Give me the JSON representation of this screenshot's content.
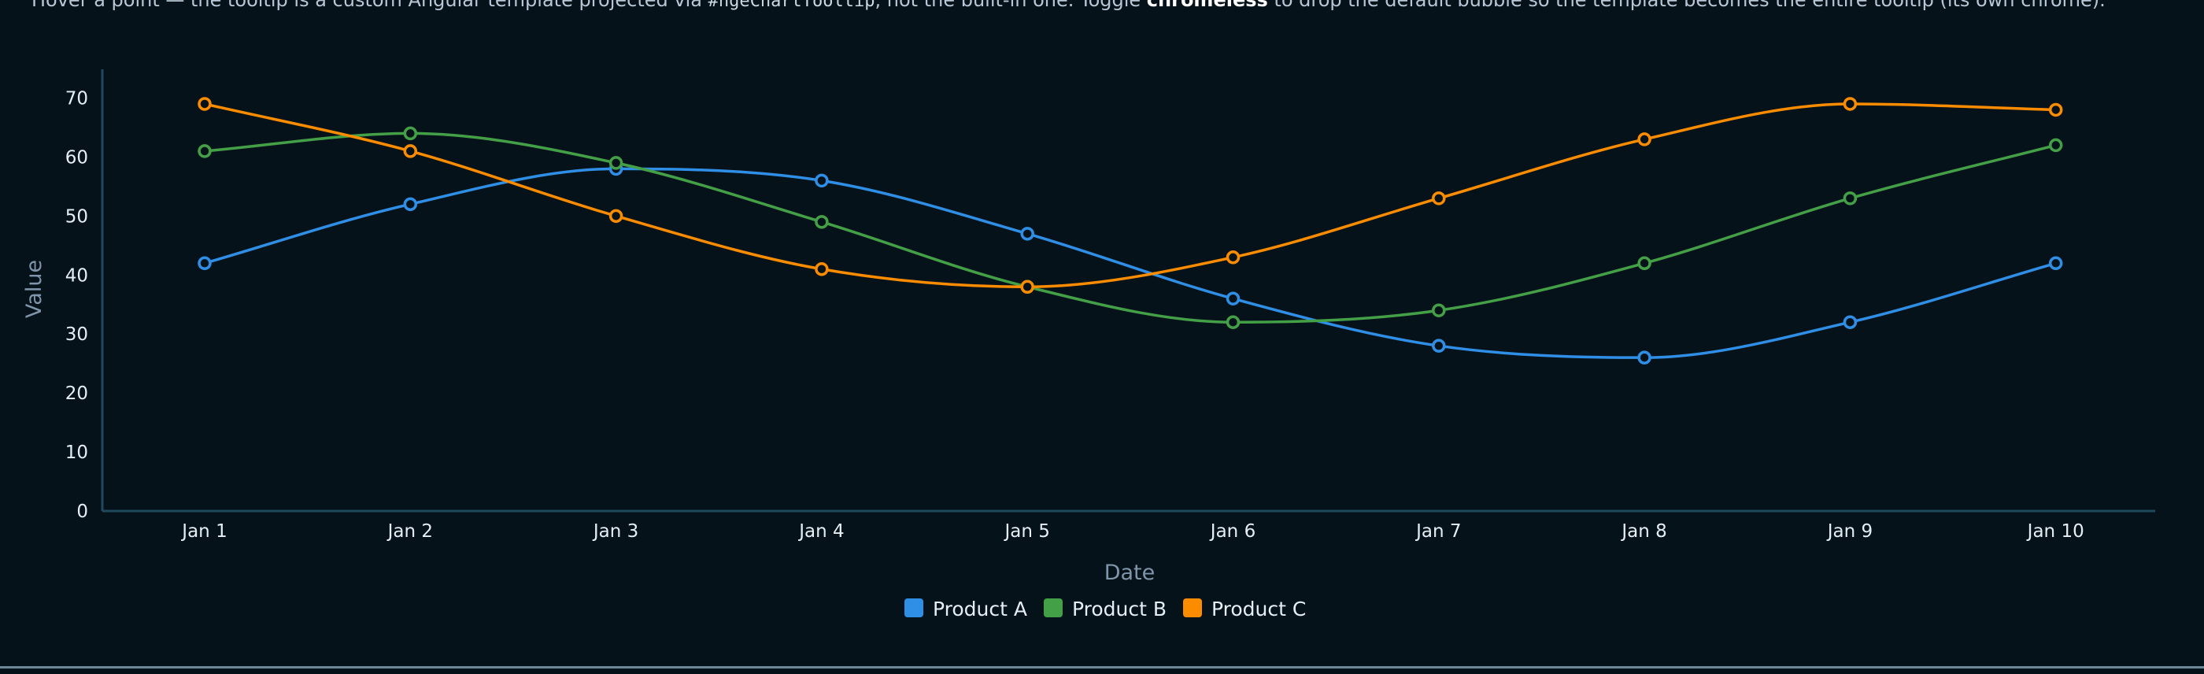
{
  "description": {
    "part1": "Hover a point — the tooltip is a custom Angular template projected via ",
    "code": "#ngeChartTooltip",
    "part2": ", not the built-in one. Toggle ",
    "bold": "chromeless",
    "part3": " to drop the default bubble so the template becomes the entire tooltip (its own chrome)."
  },
  "colors": {
    "background": "#06121a",
    "axis": "#1f4a5e",
    "series": [
      "#2f8ee5",
      "#43a047",
      "#fb8c00"
    ]
  },
  "chart_data": {
    "type": "line",
    "curve": "smooth",
    "markers": "hollow-circle",
    "grid": false,
    "xlabel": "Date",
    "ylabel": "Value",
    "ylim": [
      0,
      75
    ],
    "yticks": [
      0,
      10,
      20,
      30,
      40,
      50,
      60,
      70
    ],
    "categories": [
      "Jan 1",
      "Jan 2",
      "Jan 3",
      "Jan 4",
      "Jan 5",
      "Jan 6",
      "Jan 7",
      "Jan 8",
      "Jan 9",
      "Jan 10"
    ],
    "legend_position": "bottom-center",
    "series": [
      {
        "name": "Product A",
        "color": "#2f8ee5",
        "values": [
          42,
          52,
          58,
          56,
          47,
          36,
          28,
          26,
          32,
          42
        ]
      },
      {
        "name": "Product B",
        "color": "#43a047",
        "values": [
          61,
          64,
          59,
          49,
          38,
          32,
          34,
          42,
          53,
          62
        ]
      },
      {
        "name": "Product C",
        "color": "#fb8c00",
        "values": [
          69,
          61,
          50,
          41,
          38,
          43,
          53,
          63,
          69,
          68
        ]
      }
    ]
  }
}
